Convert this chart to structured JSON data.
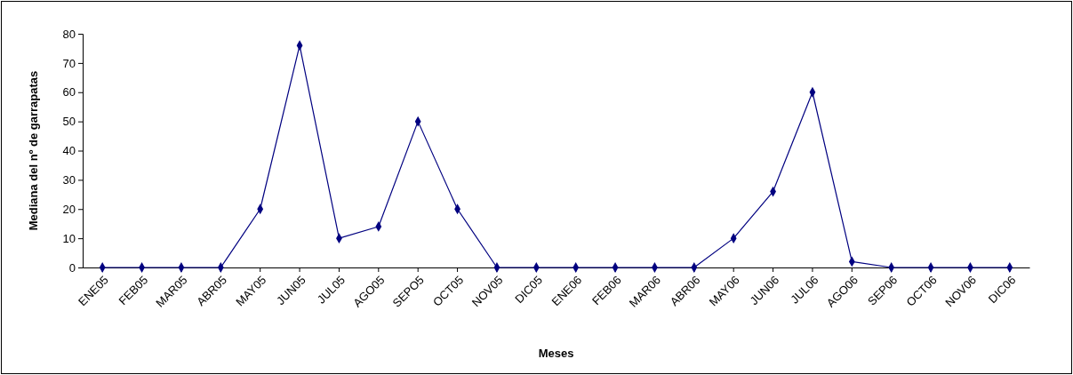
{
  "chart_data": {
    "type": "line",
    "xlabel": "Meses",
    "ylabel": "Mediana del nº de garrapatas",
    "categories": [
      "ENE05",
      "FEB05",
      "MAR05",
      "ABR05",
      "MAY05",
      "JUN05",
      "JUL05",
      "AGO05",
      "SEPO5",
      "OCT05",
      "NOV05",
      "DIC05",
      "ENE06",
      "FEB06",
      "MAR06",
      "ABR06",
      "MAY06",
      "JUN06",
      "JUL06",
      "AGO06",
      "SEP06",
      "OCT06",
      "NOV06",
      "DIC06"
    ],
    "series": [
      {
        "color": "#000080",
        "values": [
          0,
          0,
          0,
          0,
          20,
          76,
          10,
          14,
          50,
          20,
          0,
          0,
          0,
          0,
          0,
          0,
          10,
          26,
          60,
          2,
          0,
          0,
          0,
          0
        ]
      }
    ],
    "ylim": [
      0,
      80
    ],
    "yticks": [
      0,
      10,
      20,
      30,
      40,
      50,
      60,
      70,
      80
    ],
    "grid": false,
    "marker": "diamond",
    "line_style": "solid"
  }
}
